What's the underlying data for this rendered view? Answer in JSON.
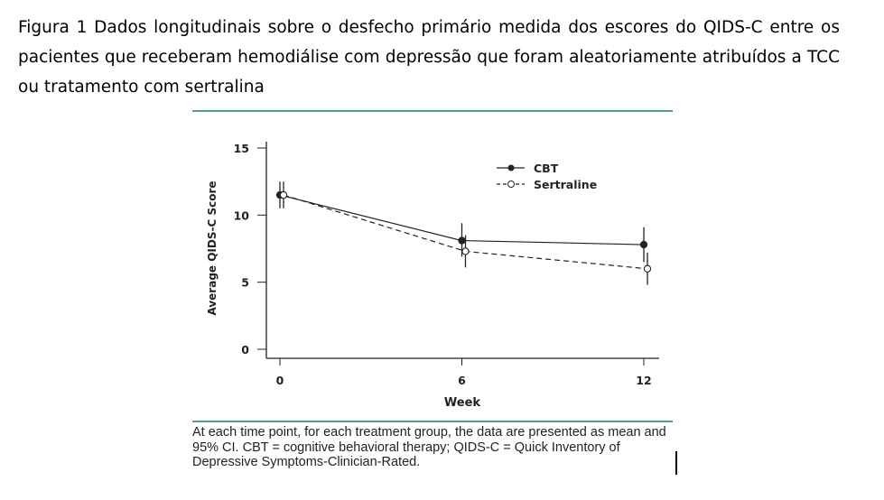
{
  "caption": "Figura 1 Dados longitudinais sobre o desfecho primário medida dos escores do QIDS-C entre os pacientes que receberam hemodiálise com depressão que foram aleatoriamente atribuídos a TCC ou tratamento com sertralina",
  "footnote": "At each time point, for each treatment group, the data are presented as mean and 95% CI. CBT = cognitive behavioral therapy; QIDS-C = Quick Inventory of Depressive Symptoms-Clinician-Rated.",
  "chart_data": {
    "type": "line",
    "xlabel": "Week",
    "ylabel": "Average QIDS-C Score",
    "x": [
      0,
      6,
      12
    ],
    "xticks": [
      "0",
      "6",
      "12"
    ],
    "yticks": [
      "0",
      "5",
      "10",
      "15"
    ],
    "ylim": [
      0,
      15
    ],
    "grid": false,
    "legend_position": "top-right",
    "series": [
      {
        "name": "CBT",
        "style": "solid, filled circle",
        "color": "#222222",
        "values": [
          11.5,
          8.1,
          7.8
        ],
        "ci_low": [
          10.5,
          6.9,
          6.5
        ],
        "ci_high": [
          12.5,
          9.4,
          9.1
        ]
      },
      {
        "name": "Sertraline",
        "style": "dashed, open circle",
        "color": "#222222",
        "values": [
          11.5,
          7.3,
          6.0
        ],
        "ci_low": [
          10.5,
          6.1,
          4.8
        ],
        "ci_high": [
          12.5,
          8.5,
          7.2
        ]
      }
    ]
  }
}
